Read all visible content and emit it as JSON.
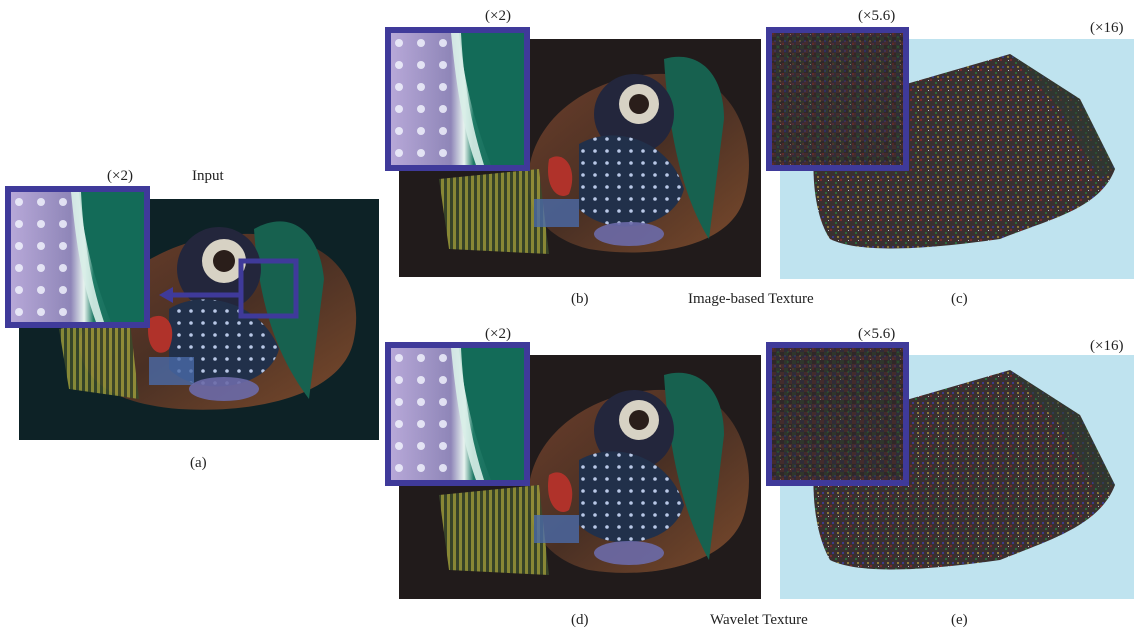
{
  "figure": {
    "panel_a": {
      "caption": "(a)",
      "title": "Input",
      "zoom": "(×2)"
    },
    "panel_b": {
      "caption": "(b)",
      "zoom": "(×2)"
    },
    "panel_c": {
      "caption": "(c)",
      "zoom_inset": "(×5.6)",
      "zoom_image": "(×16)"
    },
    "panel_d": {
      "caption": "(d)",
      "zoom": "(×2)"
    },
    "panel_e": {
      "caption": "(e)",
      "zoom_inset": "(×5.6)",
      "zoom_image": "(×16)"
    },
    "row_labels": {
      "top": "Image-based Texture",
      "bottom": "Wavelet Texture"
    },
    "colors": {
      "inset_border": "#3f3a9a",
      "dark_bg_a": "#0d2226",
      "dark_bg_b": "#211b1b",
      "noise_bg": "#bfe3ef"
    }
  }
}
